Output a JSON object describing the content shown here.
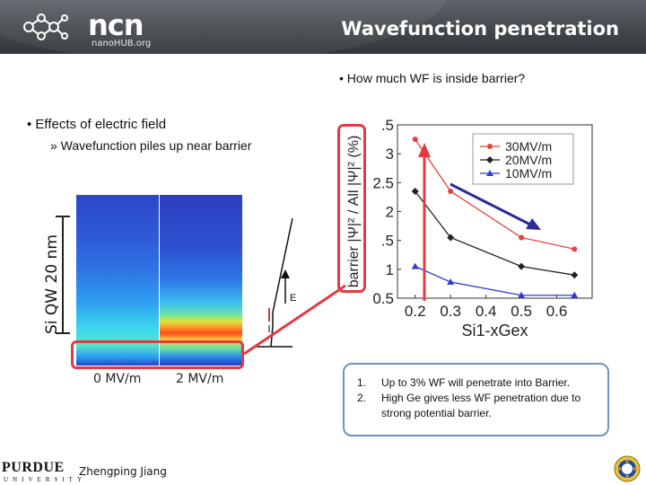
{
  "header": {
    "logo_word": "ncn",
    "logo_sub": "nanoHUB.org",
    "title": "Wavefunction penetration"
  },
  "bullets": {
    "question": "• How much WF is inside barrier?",
    "effects": "• Effects of electric field",
    "sub": "» Wavefunction piles up near barrier"
  },
  "left_figure": {
    "ylabel": "Si QW 20 nm",
    "panel_labels": [
      "0 MV/m",
      "2 MV/m"
    ],
    "field_label": "E"
  },
  "chart_data": {
    "type": "line",
    "ylabel": "barrier |Ψ|² / All |Ψ|² (%)",
    "xlabel": "Si1-xGex",
    "xlim": [
      0.15,
      0.7
    ],
    "ylim": [
      0.5,
      3.5
    ],
    "x_ticks": [
      "0.2",
      "0.3",
      "0.4",
      "0.5",
      "0.6"
    ],
    "y_ticks": [
      "3.5",
      "3",
      "2.5",
      "2",
      "1.5",
      "1",
      "0.5"
    ],
    "y_tick_labels": [
      ".5",
      "3",
      "2.5",
      "2",
      ".5",
      "1",
      "0.5"
    ],
    "legend_position": "top-right",
    "series": [
      {
        "name": "30MV/m",
        "color": "#e8403a",
        "marker": "circle",
        "x": [
          0.2,
          0.3,
          0.5,
          0.65
        ],
        "y": [
          3.25,
          2.35,
          1.55,
          1.35
        ]
      },
      {
        "name": "20MV/m",
        "color": "#222222",
        "marker": "diamond",
        "x": [
          0.2,
          0.3,
          0.5,
          0.65
        ],
        "y": [
          2.35,
          1.55,
          1.05,
          0.9
        ]
      },
      {
        "name": "10MV/m",
        "color": "#2b3fd6",
        "marker": "triangle",
        "x": [
          0.2,
          0.3,
          0.5,
          0.65
        ],
        "y": [
          1.05,
          0.78,
          0.55,
          0.55
        ]
      }
    ]
  },
  "notes": {
    "items": [
      {
        "num": "1.",
        "text": "Up to 3% WF will penetrate into Barrier."
      },
      {
        "num": "2.",
        "text": "High Ge gives less WF penetration due to strong potential barrier."
      }
    ]
  },
  "footer": {
    "logo_word": "PURDUE",
    "logo_sub": "UNIVERSITY",
    "author": "Zhengping Jiang"
  },
  "colors": {
    "accent_red": "#e43a44",
    "arrow_blue": "#2a2a9a",
    "notes_border": "#6b94c2"
  }
}
